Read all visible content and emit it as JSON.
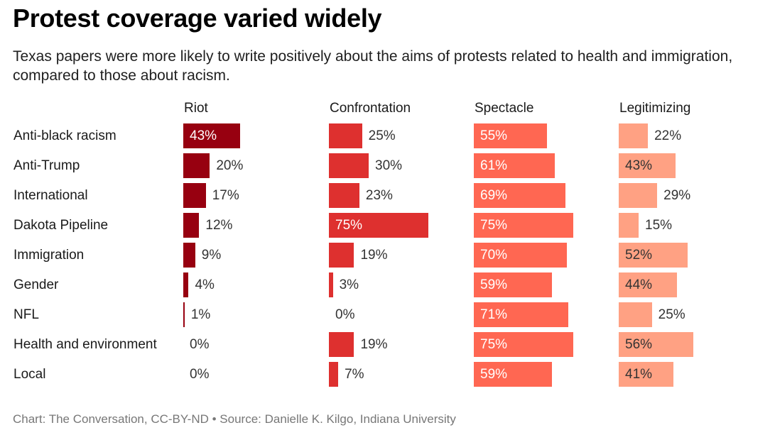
{
  "header": {
    "title": "Protest coverage varied widely",
    "subtitle": "Texas papers were more likely to write positively about the aims of protests related to health and immigration, compared to those about racism."
  },
  "footer": {
    "credit": "Chart: The Conversation, CC-BY-ND • Source: Danielle K. Kilgo, Indiana University"
  },
  "chart_data": {
    "type": "bar",
    "orientation": "horizontal",
    "layout": "small-multiples",
    "title": "Protest coverage varied widely",
    "subtitle": "Texas papers were more likely to write positively about the aims of protests related to health and immigration, compared to those about racism.",
    "xlabel": "",
    "ylabel": "",
    "unit": "%",
    "xlim": [
      0,
      75
    ],
    "grid": false,
    "categories": [
      "Anti-black racism",
      "Anti-Trump",
      "International",
      "Dakota Pipeline",
      "Immigration",
      "Gender",
      "NFL",
      "Health and environment",
      "Local"
    ],
    "series": [
      {
        "name": "Riot",
        "color": "#970010",
        "label_color_inside": "#ffffff",
        "values": [
          43,
          20,
          17,
          12,
          9,
          4,
          1,
          0,
          0
        ]
      },
      {
        "name": "Confrontation",
        "color": "#de302f",
        "label_color_inside": "#ffffff",
        "values": [
          25,
          30,
          23,
          75,
          19,
          3,
          0,
          19,
          7
        ]
      },
      {
        "name": "Spectacle",
        "color": "#ff6752",
        "label_color_inside": "#ffffff",
        "values": [
          55,
          61,
          69,
          75,
          70,
          59,
          71,
          75,
          59
        ]
      },
      {
        "name": "Legitimizing",
        "color": "#ffa183",
        "label_color_inside": "#333333",
        "values": [
          22,
          43,
          29,
          15,
          52,
          44,
          25,
          56,
          41
        ]
      }
    ],
    "data_labels": [
      [
        "43%",
        "20%",
        "17%",
        "12%",
        "9%",
        "4%",
        "1%",
        "0%",
        "0%"
      ],
      [
        "25%",
        "30%",
        "23%",
        "75%",
        "19%",
        "3%",
        "0%",
        "19%",
        "7%"
      ],
      [
        "55%",
        "61%",
        "69%",
        "75%",
        "70%",
        "59%",
        "71%",
        "75%",
        "59%"
      ],
      [
        "22%",
        "43%",
        "29%",
        "15%",
        "52%",
        "44%",
        "25%",
        "56%",
        "41%"
      ]
    ],
    "label_inside_threshold": [
      40,
      40,
      40,
      40
    ],
    "source": "Chart: The Conversation, CC-BY-ND • Source: Danielle K. Kilgo, Indiana University"
  }
}
